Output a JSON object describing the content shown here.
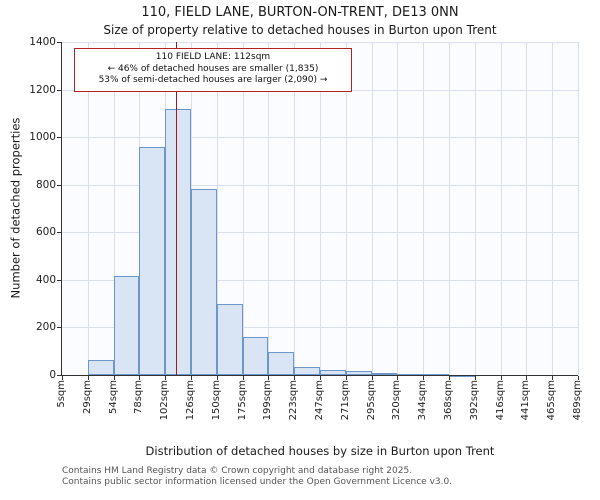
{
  "chart_data": {
    "type": "bar",
    "title": "110, FIELD LANE, BURTON-ON-TRENT, DE13 0NN",
    "subtitle": "Size of property relative to detached houses in Burton upon Trent",
    "xlabel": "Distribution of detached houses by size in Burton upon Trent",
    "ylabel": "Number of detached properties",
    "bin_edges_sqm": [
      5,
      29,
      54,
      78,
      102,
      126,
      150,
      175,
      199,
      223,
      247,
      271,
      295,
      320,
      344,
      368,
      392,
      416,
      441,
      465,
      489
    ],
    "x_tick_labels": [
      "5sqm",
      "29sqm",
      "54sqm",
      "78sqm",
      "102sqm",
      "126sqm",
      "150sqm",
      "175sqm",
      "199sqm",
      "223sqm",
      "247sqm",
      "271sqm",
      "295sqm",
      "320sqm",
      "344sqm",
      "368sqm",
      "392sqm",
      "416sqm",
      "441sqm",
      "465sqm",
      "489sqm"
    ],
    "values": [
      0,
      65,
      415,
      960,
      1120,
      780,
      300,
      160,
      95,
      35,
      20,
      15,
      10,
      5,
      3,
      2,
      0,
      0,
      0,
      0
    ],
    "ylim": [
      0,
      1400
    ],
    "y_ticks": [
      0,
      200,
      400,
      600,
      800,
      1000,
      1200,
      1400
    ],
    "grid": true,
    "marker_value_sqm": 112,
    "annotation": {
      "line1": "110 FIELD LANE: 112sqm",
      "line2": "← 46% of detached houses are smaller (1,835)",
      "line3": "53% of semi-detached houses are larger (2,090) →"
    },
    "colors": {
      "bar_fill": "#d9e4f5",
      "bar_border": "#6d96cb",
      "marker_line": "#9e1b1b",
      "grid": "#d9dfec",
      "annotation_border": "#b22222",
      "axis": "#333333"
    }
  },
  "footer": {
    "line1": "Contains HM Land Registry data © Crown copyright and database right 2025.",
    "line2": "Contains public sector information licensed under the Open Government Licence v3.0."
  }
}
